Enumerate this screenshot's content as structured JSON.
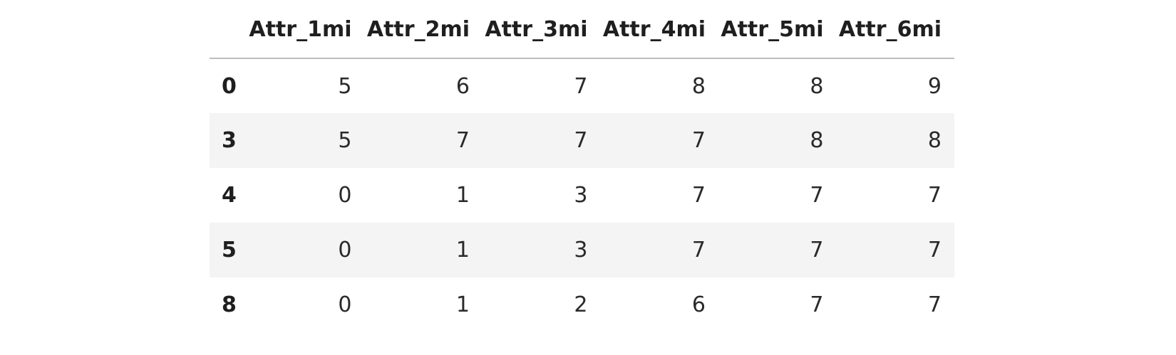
{
  "table": {
    "columns": [
      "Attr_1mi",
      "Attr_2mi",
      "Attr_3mi",
      "Attr_4mi",
      "Attr_5mi",
      "Attr_6mi"
    ],
    "rows": [
      {
        "index": "0",
        "values": [
          "5",
          "6",
          "7",
          "8",
          "8",
          "9"
        ]
      },
      {
        "index": "3",
        "values": [
          "5",
          "7",
          "7",
          "7",
          "8",
          "8"
        ]
      },
      {
        "index": "4",
        "values": [
          "0",
          "1",
          "3",
          "7",
          "7",
          "7"
        ]
      },
      {
        "index": "5",
        "values": [
          "0",
          "1",
          "3",
          "7",
          "7",
          "7"
        ]
      },
      {
        "index": "8",
        "values": [
          "0",
          "1",
          "2",
          "6",
          "7",
          "7"
        ]
      }
    ]
  },
  "chart_data": {
    "type": "table",
    "columns": [
      "Attr_1mi",
      "Attr_2mi",
      "Attr_3mi",
      "Attr_4mi",
      "Attr_5mi",
      "Attr_6mi"
    ],
    "index": [
      "0",
      "3",
      "4",
      "5",
      "8"
    ],
    "values": [
      [
        5,
        6,
        7,
        8,
        8,
        9
      ],
      [
        5,
        7,
        7,
        7,
        8,
        8
      ],
      [
        0,
        1,
        3,
        7,
        7,
        7
      ],
      [
        0,
        1,
        3,
        7,
        7,
        7
      ],
      [
        0,
        1,
        2,
        6,
        7,
        7
      ]
    ]
  }
}
